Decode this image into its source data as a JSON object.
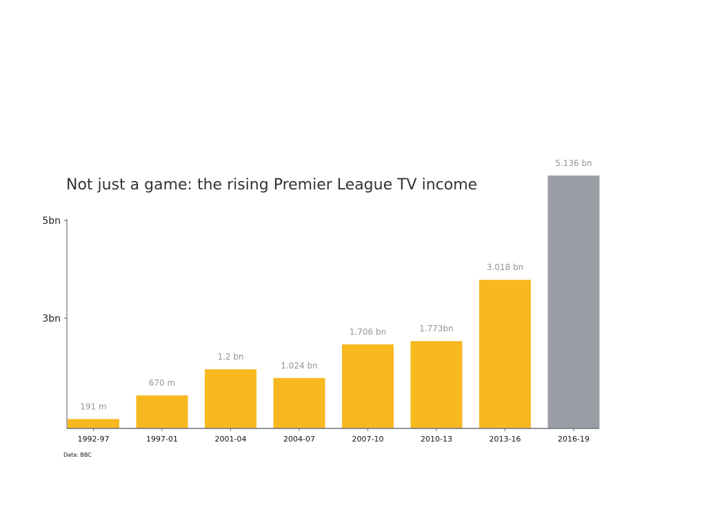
{
  "chart_data": {
    "type": "bar",
    "title": "Not just a game: the rising Premier League TV income",
    "xlabel": "",
    "ylabel": "",
    "categories": [
      "1992-97",
      "1997-01",
      "2001-04",
      "2004-07",
      "2007-10",
      "2010-13",
      "2013-16",
      "2016-19"
    ],
    "values": [
      0.191,
      0.67,
      1.2,
      1.024,
      1.706,
      1.773,
      3.018,
      5.136
    ],
    "value_labels": [
      "191 m",
      "670 m",
      "1.2 bn",
      "1.024 bn",
      "1.706 bn",
      "1.773bn",
      "3.018 bn",
      "5.136 bn"
    ],
    "unit": "bn",
    "yticks": [
      {
        "value": 3,
        "label": "3bn"
      },
      {
        "value": 5,
        "label": "5bn"
      }
    ],
    "bar_colors": [
      "#f7b820",
      "#f7b820",
      "#f7b820",
      "#f7b820",
      "#f7b820",
      "#f7b820",
      "#f7b820",
      "#9a9ea4"
    ],
    "grid": false,
    "source": "Data: BBC"
  }
}
